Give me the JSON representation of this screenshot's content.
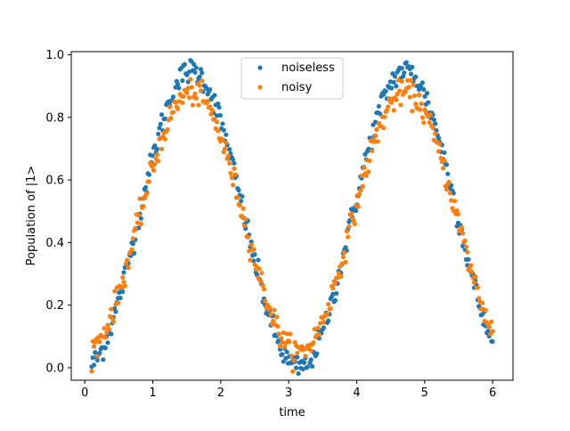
{
  "chart_data": {
    "type": "scatter",
    "title": "",
    "xlabel": "time",
    "ylabel": "Population of |1>",
    "xlim": [
      -0.2,
      6.3
    ],
    "ylim": [
      -0.04,
      1.01
    ],
    "xticks": [
      "0",
      "1",
      "2",
      "3",
      "4",
      "5",
      "6"
    ],
    "yticks": [
      "0.0",
      "0.2",
      "0.4",
      "0.6",
      "0.8",
      "1.0"
    ],
    "grid": false,
    "legend": "upper center",
    "x": {
      "start": 0.1,
      "end": 6.0,
      "count": 350
    },
    "series": [
      {
        "name": "noiseless",
        "color": "#1f77b4",
        "model": "0.95*sin(x)^2",
        "noise": 0.02
      },
      {
        "name": "noisy",
        "color": "#ff7f0e",
        "model": "0.05 + 0.83*sin(x)^2",
        "noise": 0.02
      }
    ]
  }
}
